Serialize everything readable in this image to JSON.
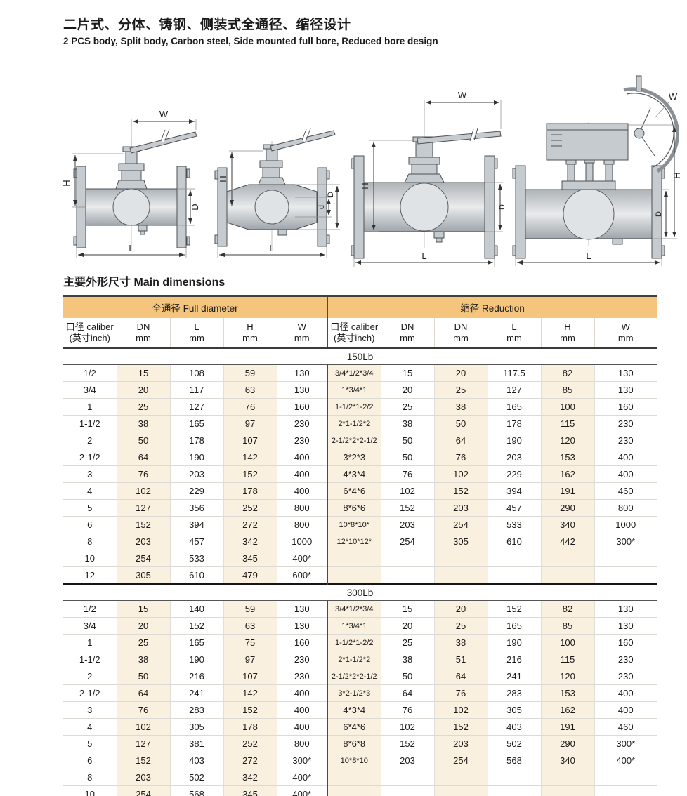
{
  "page": {
    "title_cn": "二片式、分体、铸钢、侧装式全通径、缩径设计",
    "title_en": "2 PCS body, Split body, Carbon steel, Side mounted full bore, Reduced bore design",
    "section_title": "主要外形尺寸 Main dimensions"
  },
  "drawings": {
    "dim_labels": {
      "W": "W",
      "H": "H",
      "D": "D",
      "d": "d",
      "L": "L"
    }
  },
  "table": {
    "group_headers": {
      "full": "全通径 Full diameter",
      "reduction": "缩径 Reduction"
    },
    "columns": [
      {
        "l1": "口径 caliber",
        "l2": "(英寸inch)"
      },
      {
        "l1": "DN",
        "l2": "mm"
      },
      {
        "l1": "L",
        "l2": "mm"
      },
      {
        "l1": "H",
        "l2": "mm"
      },
      {
        "l1": "W",
        "l2": "mm"
      },
      {
        "l1": "口径 caliber",
        "l2": "(英寸inch)"
      },
      {
        "l1": "DN",
        "l2": "mm"
      },
      {
        "l1": "DN",
        "l2": "mm"
      },
      {
        "l1": "L",
        "l2": "mm"
      },
      {
        "l1": "H",
        "l2": "mm"
      },
      {
        "l1": "W",
        "l2": "mm"
      }
    ],
    "sections": [
      {
        "label": "150Lb",
        "rows": [
          [
            "1/2",
            "15",
            "108",
            "59",
            "130",
            "3/4*1/2*3/4",
            "15",
            "20",
            "117.5",
            "82",
            "130"
          ],
          [
            "3/4",
            "20",
            "117",
            "63",
            "130",
            "1*3/4*1",
            "20",
            "25",
            "127",
            "85",
            "130"
          ],
          [
            "1",
            "25",
            "127",
            "76",
            "160",
            "1-1/2*1-2/2",
            "25",
            "38",
            "165",
            "100",
            "160"
          ],
          [
            "1-1/2",
            "38",
            "165",
            "97",
            "230",
            "2*1-1/2*2",
            "38",
            "50",
            "178",
            "115",
            "230"
          ],
          [
            "2",
            "50",
            "178",
            "107",
            "230",
            "2-1/2*2*2-1/2",
            "50",
            "64",
            "190",
            "120",
            "230"
          ],
          [
            "2-1/2",
            "64",
            "190",
            "142",
            "400",
            "3*2*3",
            "50",
            "76",
            "203",
            "153",
            "400"
          ],
          [
            "3",
            "76",
            "203",
            "152",
            "400",
            "4*3*4",
            "76",
            "102",
            "229",
            "162",
            "400"
          ],
          [
            "4",
            "102",
            "229",
            "178",
            "400",
            "6*4*6",
            "102",
            "152",
            "394",
            "191",
            "460"
          ],
          [
            "5",
            "127",
            "356",
            "252",
            "800",
            "8*6*6",
            "152",
            "203",
            "457",
            "290",
            "800"
          ],
          [
            "6",
            "152",
            "394",
            "272",
            "800",
            "10*8*10*",
            "203",
            "254",
            "533",
            "340",
            "1000"
          ],
          [
            "8",
            "203",
            "457",
            "342",
            "1000",
            "12*10*12*",
            "254",
            "305",
            "610",
            "442",
            "300*"
          ],
          [
            "10",
            "254",
            "533",
            "345",
            "400*",
            "-",
            "-",
            "-",
            "-",
            "-",
            "-"
          ],
          [
            "12",
            "305",
            "610",
            "479",
            "600*",
            "-",
            "-",
            "-",
            "-",
            "-",
            "-"
          ]
        ]
      },
      {
        "label": "300Lb",
        "rows": [
          [
            "1/2",
            "15",
            "140",
            "59",
            "130",
            "3/4*1/2*3/4",
            "15",
            "20",
            "152",
            "82",
            "130"
          ],
          [
            "3/4",
            "20",
            "152",
            "63",
            "130",
            "1*3/4*1",
            "20",
            "25",
            "165",
            "85",
            "130"
          ],
          [
            "1",
            "25",
            "165",
            "75",
            "160",
            "1-1/2*1-2/2",
            "25",
            "38",
            "190",
            "100",
            "160"
          ],
          [
            "1-1/2",
            "38",
            "190",
            "97",
            "230",
            "2*1-1/2*2",
            "38",
            "51",
            "216",
            "115",
            "230"
          ],
          [
            "2",
            "50",
            "216",
            "107",
            "230",
            "2-1/2*2*2-1/2",
            "50",
            "64",
            "241",
            "120",
            "230"
          ],
          [
            "2-1/2",
            "64",
            "241",
            "142",
            "400",
            "3*2-1/2*3",
            "64",
            "76",
            "283",
            "153",
            "400"
          ],
          [
            "3",
            "76",
            "283",
            "152",
            "400",
            "4*3*4",
            "76",
            "102",
            "305",
            "162",
            "400"
          ],
          [
            "4",
            "102",
            "305",
            "178",
            "400",
            "6*4*6",
            "102",
            "152",
            "403",
            "191",
            "460"
          ],
          [
            "5",
            "127",
            "381",
            "252",
            "800",
            "8*6*8",
            "152",
            "203",
            "502",
            "290",
            "300*"
          ],
          [
            "6",
            "152",
            "403",
            "272",
            "300*",
            "10*8*10",
            "203",
            "254",
            "568",
            "340",
            "400*"
          ],
          [
            "8",
            "203",
            "502",
            "342",
            "400*",
            "-",
            "-",
            "-",
            "-",
            "-",
            "-"
          ],
          [
            "10",
            "254",
            "568",
            "345",
            "400*",
            "-",
            "-",
            "-",
            "-",
            "-",
            "-"
          ]
        ]
      }
    ]
  },
  "colors": {
    "header_band": "#f5c57d",
    "column_stripe": "#faf0df",
    "dark_border": "#43403c",
    "grid_line": "#dcdad4"
  }
}
